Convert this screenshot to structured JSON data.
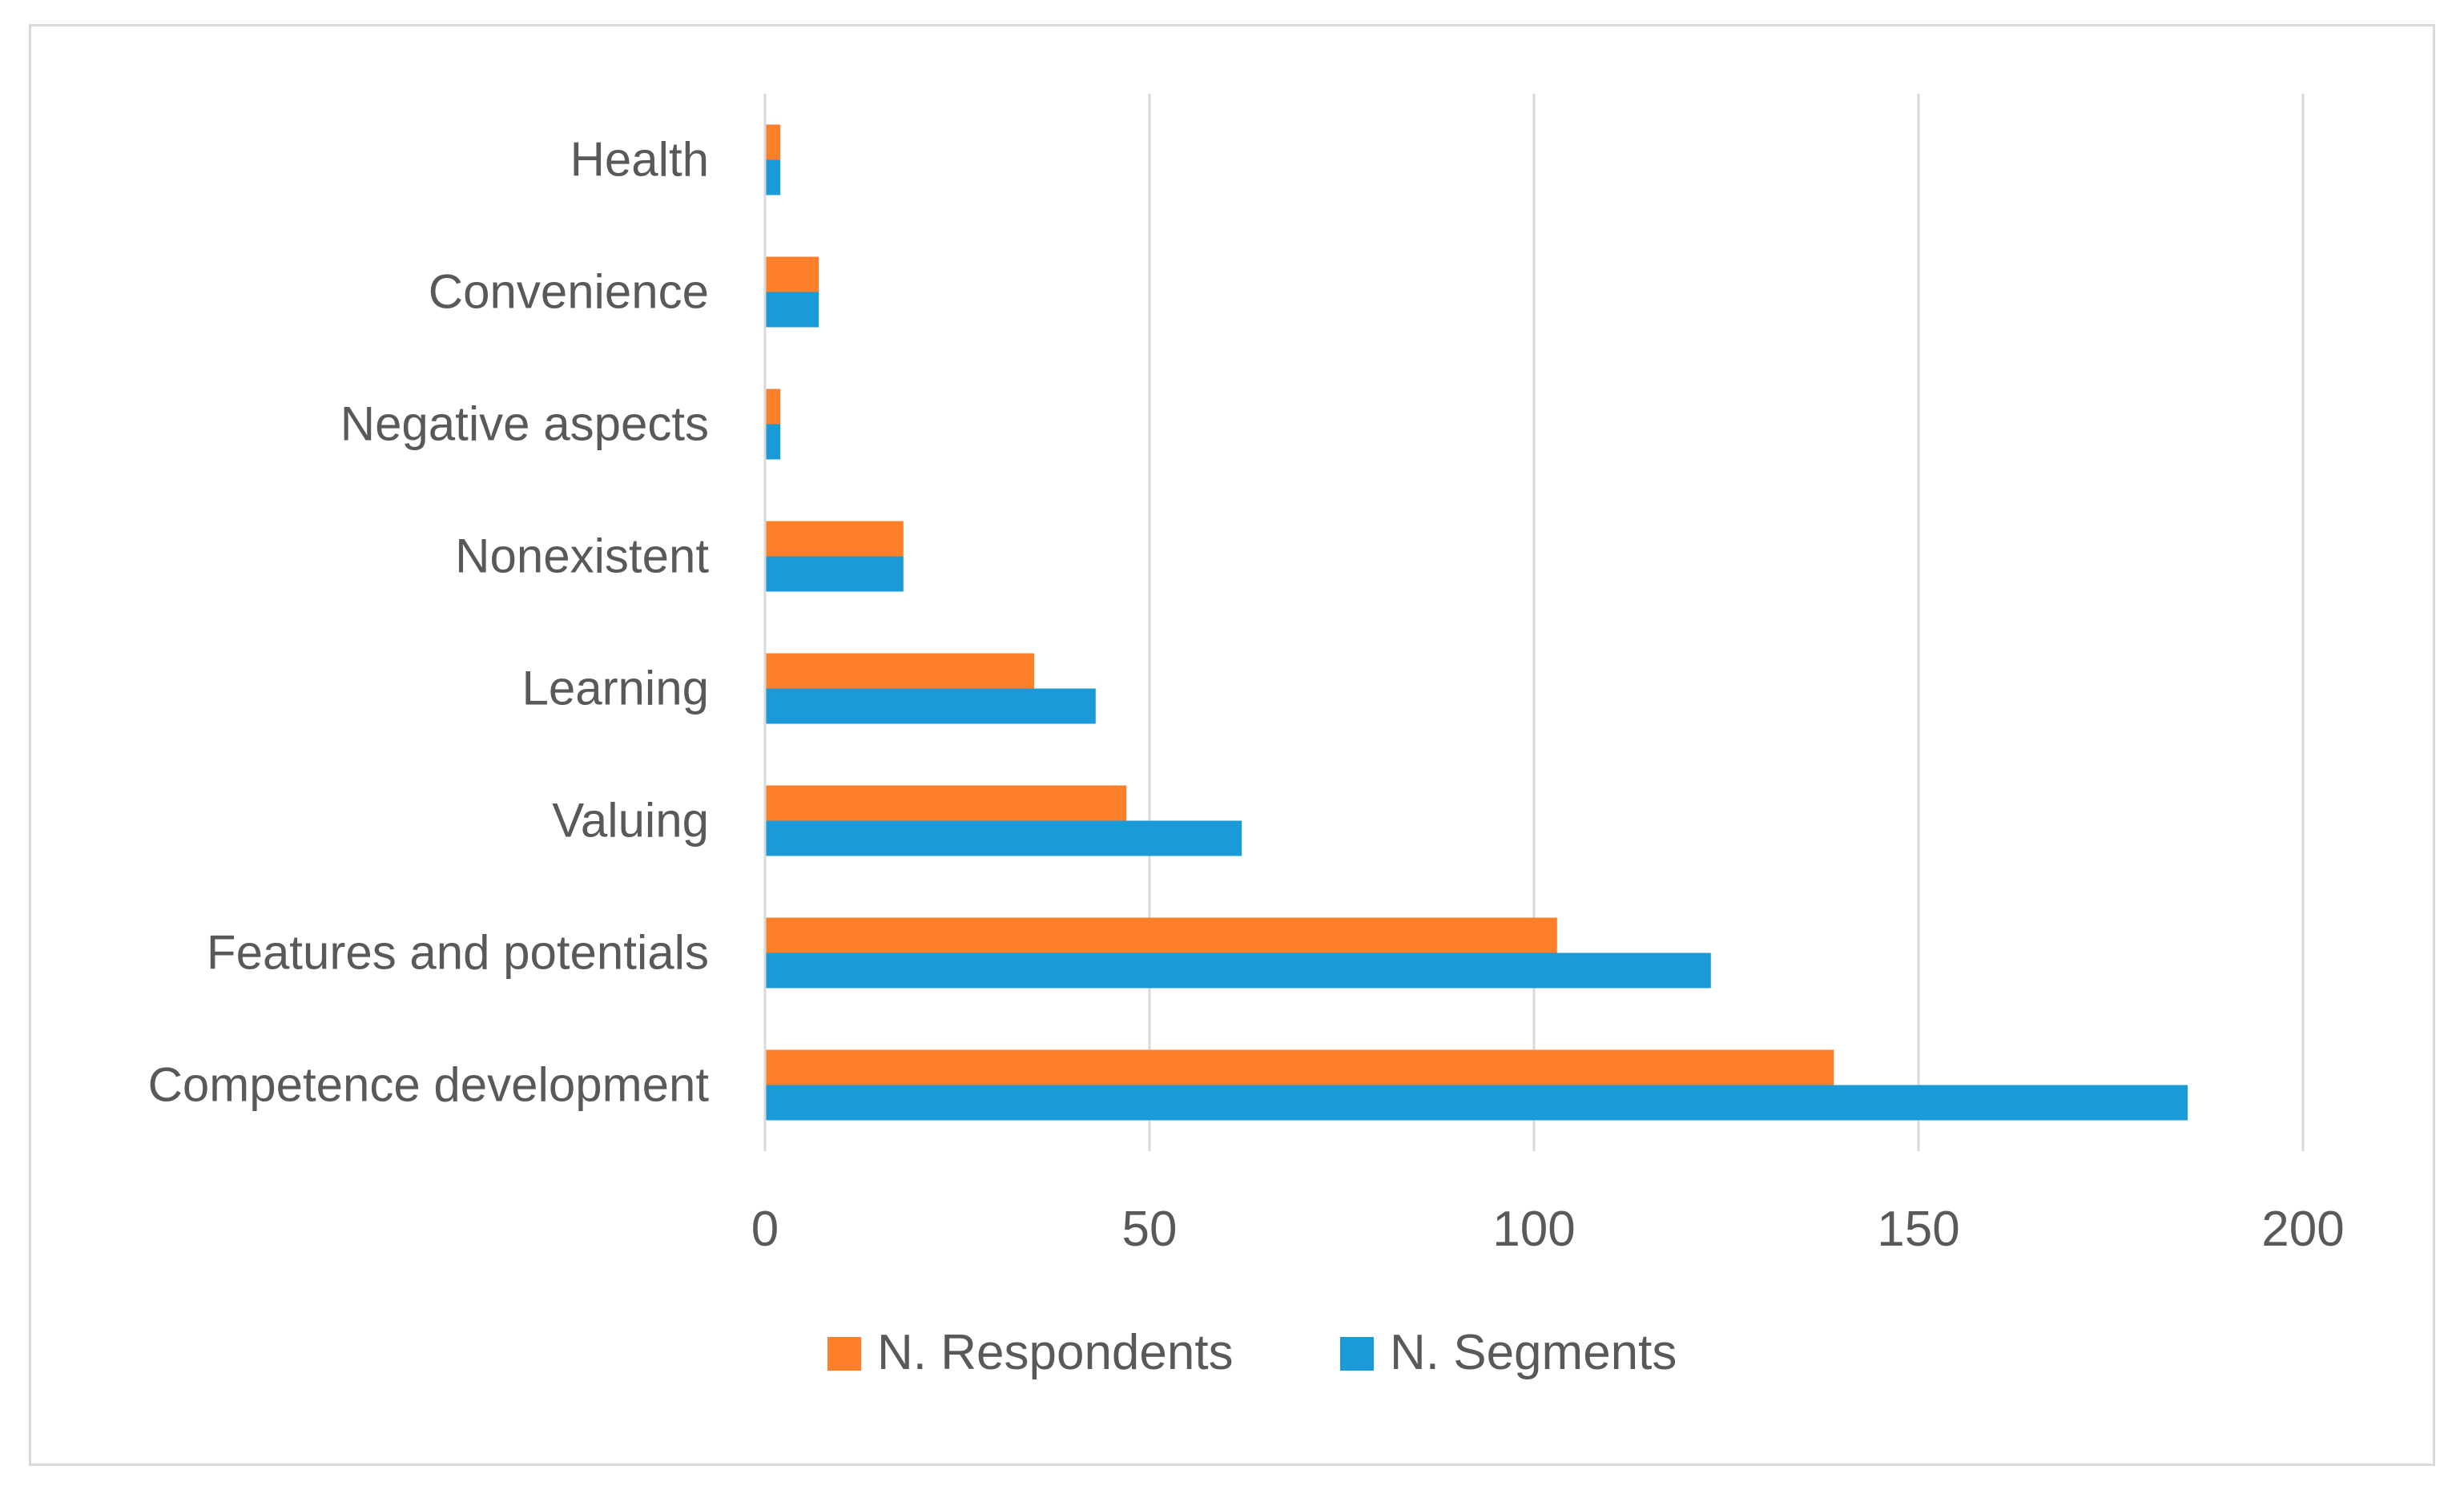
{
  "chart_data": {
    "type": "bar",
    "orientation": "horizontal",
    "title": "",
    "xlabel": "",
    "ylabel": "",
    "categories": [
      "Competence development",
      "Features and potentials",
      "Valuing",
      "Learning",
      "Nonexistent",
      "Negative aspects",
      "Convenience",
      "Health"
    ],
    "series": [
      {
        "name": "N. Respondents",
        "color": "#fd7f2a",
        "values": [
          139,
          103,
          47,
          35,
          18,
          2,
          7,
          2
        ]
      },
      {
        "name": "N. Segments",
        "color": "#1a9ad7",
        "values": [
          185,
          123,
          62,
          43,
          18,
          2,
          7,
          2
        ]
      }
    ],
    "xlim": [
      0,
      200
    ],
    "xticks": [
      "0",
      "50",
      "100",
      "150",
      "200"
    ],
    "grid": true,
    "legend": "bottom"
  }
}
